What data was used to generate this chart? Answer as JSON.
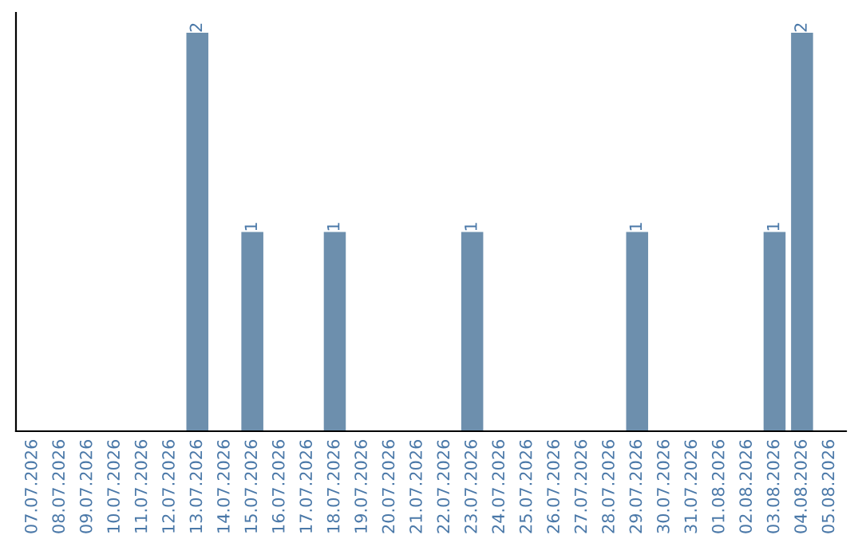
{
  "chart_data": {
    "type": "bar",
    "tick_labels": "x",
    "grid": false,
    "legend": false,
    "categories": [
      "07.07.2026",
      "08.07.2026",
      "09.07.2026",
      "10.07.2026",
      "11.07.2026",
      "12.07.2026",
      "13.07.2026",
      "14.07.2026",
      "15.07.2026",
      "16.07.2026",
      "17.07.2026",
      "18.07.2026",
      "19.07.2026",
      "20.07.2026",
      "21.07.2026",
      "22.07.2026",
      "23.07.2026",
      "24.07.2026",
      "25.07.2026",
      "26.07.2026",
      "27.07.2026",
      "28.07.2026",
      "29.07.2026",
      "30.07.2026",
      "31.07.2026",
      "01.08.2026",
      "02.08.2026",
      "03.08.2026",
      "04.08.2026",
      "05.08.2026"
    ],
    "color": "#6d8fad",
    "values": [
      0,
      0,
      0,
      0,
      0,
      0,
      2,
      0,
      1,
      0,
      0,
      1,
      0,
      0,
      0,
      0,
      1,
      0,
      0,
      0,
      0,
      0,
      1,
      0,
      0,
      0,
      0,
      1,
      2,
      0
    ],
    "value_labels": [
      null,
      null,
      null,
      null,
      null,
      null,
      "2",
      null,
      "1",
      null,
      null,
      "1",
      null,
      null,
      null,
      null,
      "1",
      null,
      null,
      null,
      null,
      null,
      "1",
      null,
      null,
      null,
      null,
      "1",
      "2",
      null
    ]
  }
}
